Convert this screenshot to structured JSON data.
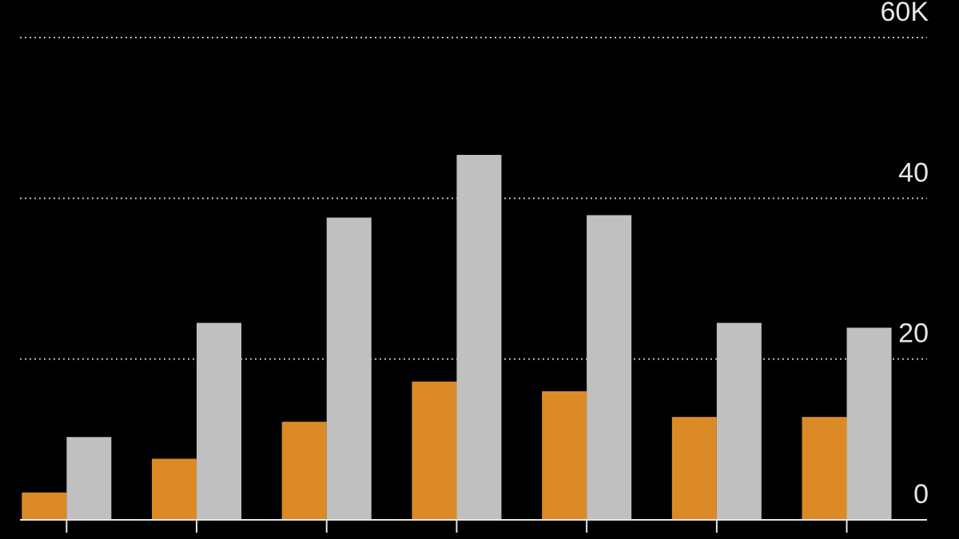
{
  "chart_data": {
    "type": "bar",
    "categories": [
      null,
      null,
      null,
      null,
      null,
      null,
      null
    ],
    "series": [
      {
        "color": "#dc8a25",
        "values": [
          3.4,
          7.6,
          12.2,
          17.2,
          16.0,
          12.8,
          12.8
        ]
      },
      {
        "color": "#c0c0c0",
        "values": [
          10.3,
          24.5,
          37.6,
          45.4,
          37.9,
          24.5,
          23.9
        ]
      }
    ],
    "ylim": [
      0,
      60
    ],
    "yticks": [
      0,
      20,
      40,
      {
        "value": 60,
        "label": "60K"
      }
    ],
    "grid": true
  }
}
